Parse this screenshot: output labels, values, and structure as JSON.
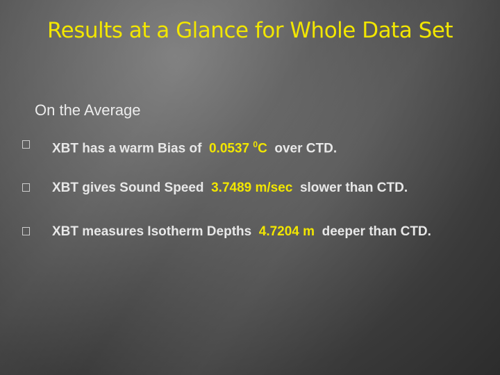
{
  "header": {
    "title": "Results at a Glance for Whole Data Set",
    "subtitle": "On the Average"
  },
  "bullets": [
    {
      "text": "XBT has a warm Bias of",
      "value": "0.0537",
      "sup": "0",
      "unit": "C",
      "tail": "over CTD."
    },
    {
      "text": "XBT gives Sound Speed",
      "value": "3.7489 m/sec",
      "tail": "slower than CTD."
    },
    {
      "text": "XBT measures Isotherm Depths",
      "value": "4.7204 m",
      "tail": "deeper than CTD."
    }
  ]
}
